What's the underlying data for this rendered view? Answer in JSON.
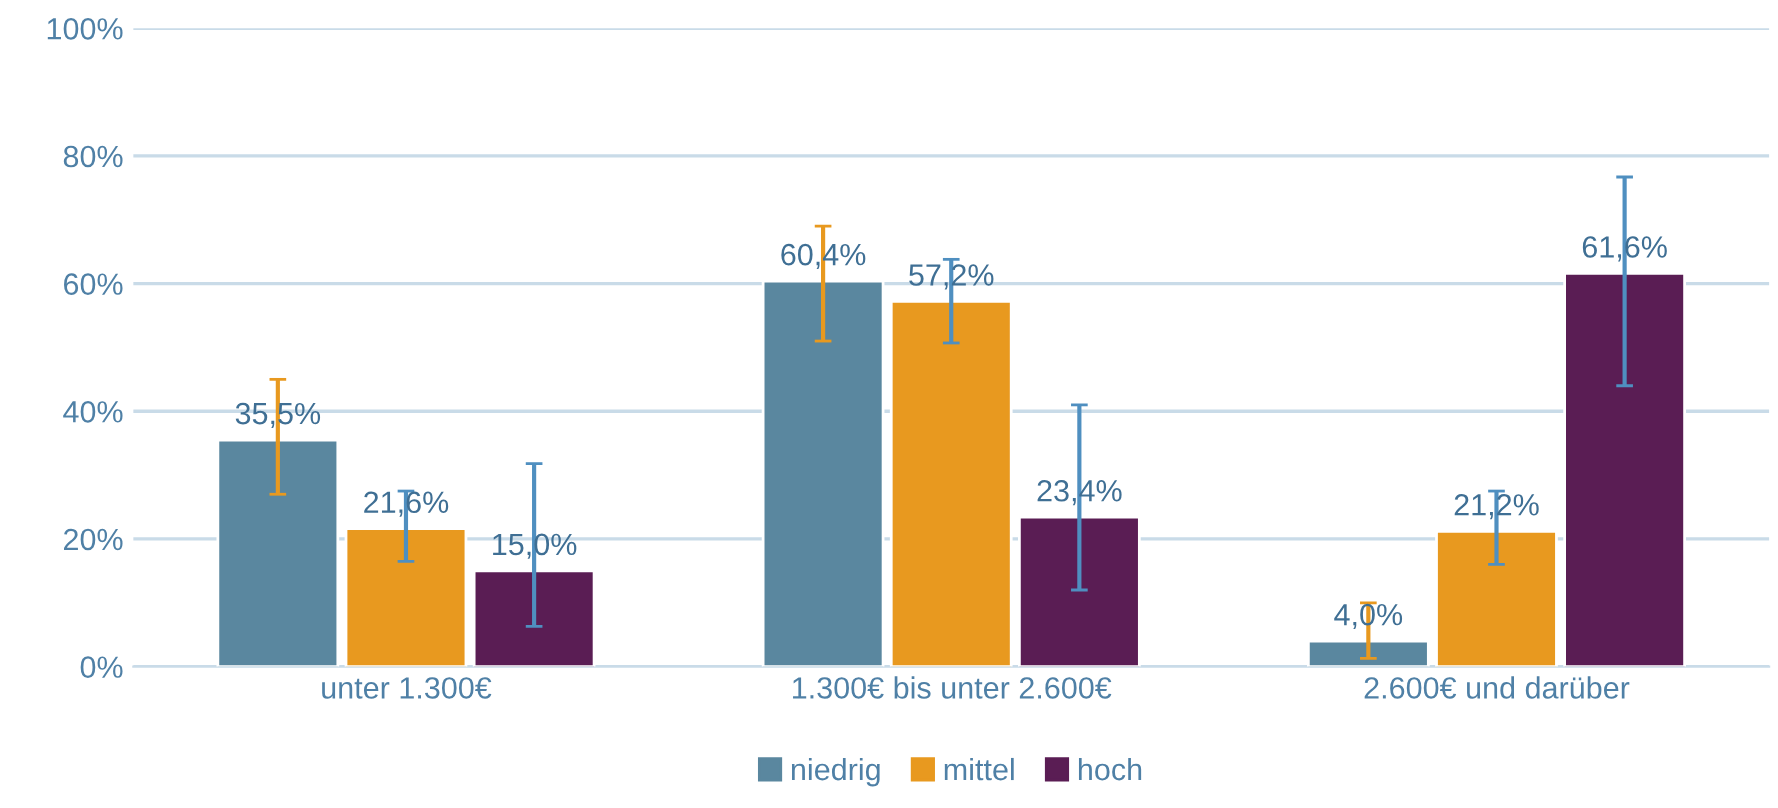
{
  "chart_data": {
    "type": "bar",
    "categories": [
      "unter 1.300€",
      "1.300€ bis unter 2.600€",
      "2.600€ und darüber"
    ],
    "series": [
      {
        "name": "niedrig",
        "color": "#5a879f",
        "values": [
          35.5,
          60.4,
          4.0
        ],
        "value_labels": [
          "35,5%",
          "60,4%",
          "4,0%"
        ],
        "errors": [
          [
            27,
            45
          ],
          [
            51,
            69
          ],
          [
            1.3,
            10
          ]
        ]
      },
      {
        "name": "mittel",
        "color": "#e8991f",
        "values": [
          21.6,
          57.2,
          21.2
        ],
        "value_labels": [
          "21,6%",
          "57,2%",
          "21,2%"
        ],
        "errors": [
          [
            16.5,
            27.5
          ],
          [
            50.7,
            63.8
          ],
          [
            16,
            27.5
          ]
        ]
      },
      {
        "name": "hoch",
        "color": "#5a1d54",
        "values": [
          15.0,
          23.4,
          61.6
        ],
        "value_labels": [
          "15,0%",
          "23,4%",
          "61,6%"
        ],
        "errors": [
          [
            6.3,
            31.8
          ],
          [
            12,
            41
          ],
          [
            44,
            76.7
          ]
        ]
      }
    ],
    "ylim": [
      0,
      100
    ],
    "yticks": [
      {
        "value": 0,
        "label": "0%"
      },
      {
        "value": 20,
        "label": "20%"
      },
      {
        "value": 40,
        "label": "40%"
      },
      {
        "value": 60,
        "label": "60%"
      },
      {
        "value": 80,
        "label": "80%"
      },
      {
        "value": 100,
        "label": "100%"
      }
    ],
    "grid": "y",
    "legend": "bottom"
  }
}
